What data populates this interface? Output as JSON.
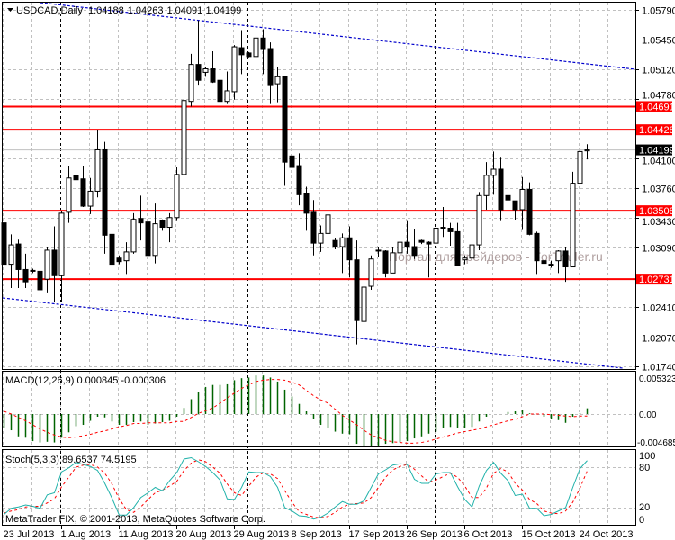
{
  "header": {
    "symbol": "USDCAD,Daily",
    "open": "1.04188",
    "high": "1.04263",
    "low": "1.04091",
    "close": "1.04199"
  },
  "price_axis": {
    "ticks": [
      "1.05790",
      "1.05450",
      "1.05120",
      "1.04780",
      "1.04100",
      "1.03760",
      "1.03430",
      "1.03090",
      "1.02410",
      "1.02070",
      "1.01740"
    ]
  },
  "levels": [
    {
      "label": "1.04691",
      "color": "#ff0000"
    },
    {
      "label": "1.04428",
      "color": "#ff0000"
    },
    {
      "label": "1.03508",
      "color": "#ff0000"
    },
    {
      "label": "1.02731",
      "color": "#ff0000"
    }
  ],
  "current_price": {
    "label": "1.04199",
    "color": "#000000"
  },
  "watermark": "Портал для трейдеров - ForTrader.ru",
  "copyright": "MetaTrader FIX, © 2001-2013, MetaQuotes Software Corp.",
  "macd": {
    "title": "MACD(12,26,9) 0.000845 -0.000306",
    "axis": [
      "0.005323",
      "0.00",
      "-0.004685"
    ]
  },
  "stoch": {
    "title": "Stoch(5,3,3) 89.6537 74.5195",
    "axis": [
      "100",
      "80",
      "20",
      "0"
    ]
  },
  "dates": [
    {
      "label": "23 Jul 2013",
      "bar": 1
    },
    {
      "label": "1 Aug 2013",
      "bar": 9
    },
    {
      "label": "11 Aug 2013",
      "bar": 17
    },
    {
      "label": "20 Aug 2013",
      "bar": 25
    },
    {
      "label": "29 Aug 2013",
      "bar": 33
    },
    {
      "label": "8 Sep 2013",
      "bar": 41
    },
    {
      "label": "17 Sep 2013",
      "bar": 49
    },
    {
      "label": "26 Sep 2013",
      "bar": 57
    },
    {
      "label": "6 Oct 2013",
      "bar": 65
    },
    {
      "label": "15 Oct 2013",
      "bar": 73
    },
    {
      "label": "24 Oct 2013",
      "bar": 81
    }
  ],
  "colors": {
    "bull": "#ffffff",
    "bear": "#000000",
    "trendline": "#0000cc",
    "macd_hist": "#006400",
    "signal": "#ff0000",
    "stoch_k": "#20b2aa",
    "stoch_d": "#ff0000",
    "grid": "#c0c0c0"
  },
  "chart_data": {
    "type": "candlestick",
    "symbol": "USDCAD",
    "timeframe": "Daily",
    "ylim": [
      1.0174,
      1.0579
    ],
    "ohlc": [
      [
        1.0337,
        1.0348,
        1.0276,
        1.029
      ],
      [
        1.029,
        1.0324,
        1.0263,
        1.0312
      ],
      [
        1.0313,
        1.0318,
        1.0263,
        1.0284
      ],
      [
        1.0284,
        1.0302,
        1.0263,
        1.027
      ],
      [
        1.0283,
        1.0285,
        1.028,
        1.0283
      ],
      [
        1.0282,
        1.0283,
        1.0247,
        1.0261
      ],
      [
        1.0273,
        1.0309,
        1.0258,
        1.0306
      ],
      [
        1.0306,
        1.0333,
        1.0247,
        1.0277
      ],
      [
        1.0277,
        1.035,
        1.0247,
        1.0348
      ],
      [
        1.0349,
        1.0401,
        1.0337,
        1.0388
      ],
      [
        1.0391,
        1.0396,
        1.0385,
        1.0386
      ],
      [
        1.0387,
        1.0402,
        1.0355,
        1.0356
      ],
      [
        1.0356,
        1.0388,
        1.0347,
        1.0373
      ],
      [
        1.0373,
        1.0442,
        1.0366,
        1.042
      ],
      [
        1.042,
        1.0429,
        1.0302,
        1.0323
      ],
      [
        1.0324,
        1.0351,
        1.0273,
        1.029
      ],
      [
        1.0297,
        1.03,
        1.029,
        1.0293
      ],
      [
        1.0294,
        1.0315,
        1.0279,
        1.0304
      ],
      [
        1.0304,
        1.0348,
        1.0302,
        1.0341
      ],
      [
        1.0342,
        1.0368,
        1.0317,
        1.0337
      ],
      [
        1.0338,
        1.0362,
        1.0291,
        1.03
      ],
      [
        1.03,
        1.0359,
        1.0291,
        1.0336
      ],
      [
        1.034,
        1.0341,
        1.0328,
        1.0332
      ],
      [
        1.0332,
        1.0348,
        1.0315,
        1.0343
      ],
      [
        1.0343,
        1.04,
        1.0339,
        1.0392
      ],
      [
        1.0392,
        1.0482,
        1.0391,
        1.0476
      ],
      [
        1.0475,
        1.0529,
        1.0469,
        1.0517
      ],
      [
        1.0517,
        1.0567,
        1.0493,
        1.0499
      ],
      [
        1.0508,
        1.0514,
        1.0503,
        1.0512
      ],
      [
        1.0512,
        1.0532,
        1.0496,
        1.0497
      ],
      [
        1.0499,
        1.0538,
        1.0469,
        1.0475
      ],
      [
        1.0475,
        1.0509,
        1.0472,
        1.0487
      ],
      [
        1.0486,
        1.0539,
        1.0477,
        1.0537
      ],
      [
        1.0536,
        1.0556,
        1.0506,
        1.0528
      ],
      [
        1.053,
        1.0531,
        1.0525,
        1.0526
      ],
      [
        1.0526,
        1.0555,
        1.0513,
        1.0547
      ],
      [
        1.0547,
        1.0557,
        1.0506,
        1.0534
      ],
      [
        1.0535,
        1.0542,
        1.0472,
        1.0493
      ],
      [
        1.0495,
        1.0514,
        1.0474,
        1.0503
      ],
      [
        1.0503,
        1.0503,
        1.0379,
        1.0406
      ],
      [
        1.0413,
        1.0417,
        1.0399,
        1.04
      ],
      [
        1.0402,
        1.0416,
        1.0357,
        1.0369
      ],
      [
        1.037,
        1.0378,
        1.0328,
        1.0348
      ],
      [
        1.0349,
        1.0363,
        1.03,
        1.0314
      ],
      [
        1.0314,
        1.0334,
        1.0304,
        1.0325
      ],
      [
        1.0325,
        1.0351,
        1.0321,
        1.0346
      ],
      [
        1.0317,
        1.032,
        1.0307,
        1.031
      ],
      [
        1.031,
        1.0325,
        1.028,
        1.032
      ],
      [
        1.032,
        1.0333,
        1.0275,
        1.0295
      ],
      [
        1.0295,
        1.0317,
        1.0199,
        1.0226
      ],
      [
        1.0225,
        1.0267,
        1.0181,
        1.0264
      ],
      [
        1.0265,
        1.03,
        1.0261,
        1.0296
      ],
      [
        1.0306,
        1.0309,
        1.0298,
        1.0306
      ],
      [
        1.0305,
        1.0306,
        1.0275,
        1.028
      ],
      [
        1.028,
        1.0309,
        1.028,
        1.0303
      ],
      [
        1.0303,
        1.0317,
        1.0283,
        1.0315
      ],
      [
        1.0315,
        1.0339,
        1.0302,
        1.031
      ],
      [
        1.031,
        1.033,
        1.0296,
        1.03
      ],
      [
        1.0317,
        1.0318,
        1.0313,
        1.0315
      ],
      [
        1.0315,
        1.0316,
        1.0275,
        1.0313
      ],
      [
        1.0314,
        1.0336,
        1.0285,
        1.0331
      ],
      [
        1.0332,
        1.0355,
        1.0321,
        1.0332
      ],
      [
        1.0331,
        1.0337,
        1.0311,
        1.0327
      ],
      [
        1.0327,
        1.0337,
        1.0288,
        1.0289
      ],
      [
        1.0295,
        1.03,
        1.029,
        1.0297
      ],
      [
        1.0297,
        1.0332,
        1.0295,
        1.0312
      ],
      [
        1.0312,
        1.0372,
        1.0306,
        1.0368
      ],
      [
        1.0368,
        1.0406,
        1.0352,
        1.0391
      ],
      [
        1.0391,
        1.0418,
        1.0369,
        1.0398
      ],
      [
        1.0398,
        1.0411,
        1.0339,
        1.0352
      ],
      [
        1.0368,
        1.0369,
        1.0362,
        1.0363
      ],
      [
        1.0362,
        1.0362,
        1.034,
        1.0352
      ],
      [
        1.0352,
        1.0389,
        1.0329,
        1.0375
      ],
      [
        1.0375,
        1.0383,
        1.0323,
        1.0324
      ],
      [
        1.0325,
        1.0327,
        1.0279,
        1.0294
      ],
      [
        1.0294,
        1.0302,
        1.0276,
        1.0291
      ],
      [
        1.029,
        1.0294,
        1.0286,
        1.0289
      ],
      [
        1.0294,
        1.0306,
        1.028,
        1.0305
      ],
      [
        1.0305,
        1.0309,
        1.027,
        1.0287
      ],
      [
        1.0287,
        1.0395,
        1.0287,
        1.0382
      ],
      [
        1.0382,
        1.0437,
        1.0364,
        1.0418
      ],
      [
        1.04188,
        1.04263,
        1.04091,
        1.04199
      ]
    ],
    "levels": [
      1.04691,
      1.04428,
      1.03508,
      1.02731
    ],
    "current": 1.04199,
    "macd": {
      "ylim": [
        -0.004685,
        0.005323
      ],
      "hist": [
        -0.002,
        -0.0024,
        -0.0033,
        -0.0035,
        -0.004,
        -0.0042,
        -0.0041,
        -0.0042,
        -0.0035,
        -0.0027,
        -0.0018,
        -0.0016,
        -0.001,
        -0.0004,
        -0.0005,
        -0.0011,
        -0.0016,
        -0.0016,
        -0.0012,
        -0.0011,
        -0.0016,
        -0.0014,
        -0.0012,
        -0.001,
        -0.0004,
        0.0009,
        0.0022,
        0.0032,
        0.004,
        0.0043,
        0.0043,
        0.0044,
        0.005,
        0.0053,
        0.0054,
        0.0057,
        0.0057,
        0.0054,
        0.0048,
        0.0036,
        0.0026,
        0.0015,
        0.0004,
        -0.0007,
        -0.0016,
        -0.002,
        -0.0026,
        -0.0029,
        -0.003,
        -0.0044,
        -0.0047,
        -0.0048,
        -0.0047,
        -0.0044,
        -0.0043,
        -0.0042,
        -0.004,
        -0.0036,
        -0.0033,
        -0.0029,
        -0.0026,
        -0.0021,
        -0.0019,
        -0.002,
        -0.0021,
        -0.0019,
        -0.0011,
        -0.0004,
        0.0,
        0.0,
        0.0003,
        0.0004,
        0.0006,
        0.0001,
        0.0,
        -0.0004,
        -0.0008,
        -0.0009,
        -0.0013,
        -0.0004,
        0.0001,
        0.000845
      ],
      "signal": [
        0.0004,
        0.0,
        -0.0005,
        -0.001,
        -0.0016,
        -0.0022,
        -0.0027,
        -0.0031,
        -0.0034,
        -0.0035,
        -0.0034,
        -0.0032,
        -0.003,
        -0.0027,
        -0.0025,
        -0.0022,
        -0.0019,
        -0.0017,
        -0.0014,
        -0.0014,
        -0.0013,
        -0.0013,
        -0.0013,
        -0.0013,
        -0.0011,
        -0.0011,
        -0.0005,
        0.0001,
        0.0005,
        0.0009,
        0.0016,
        0.0024,
        0.0031,
        0.0038,
        0.0043,
        0.0048,
        0.005,
        0.0051,
        0.0051,
        0.005,
        0.0047,
        0.0043,
        0.0035,
        0.0027,
        0.0021,
        0.0016,
        0.0007,
        -0.0002,
        -0.0009,
        -0.0016,
        -0.0024,
        -0.0031,
        -0.0035,
        -0.0039,
        -0.0041,
        -0.0042,
        -0.0043,
        -0.0043,
        -0.0042,
        -0.004,
        -0.0037,
        -0.0034,
        -0.0031,
        -0.0028,
        -0.0026,
        -0.0024,
        -0.0022,
        -0.0019,
        -0.0016,
        -0.0013,
        -0.001,
        -0.0008,
        -0.0004,
        0.0,
        0.0,
        0.0,
        -0.0001,
        -0.0002,
        -0.0003,
        -0.0004,
        -0.0003,
        -0.000306
      ]
    },
    "stoch": {
      "ylim": [
        0,
        100
      ],
      "k": [
        10,
        19,
        21,
        24,
        22,
        19,
        39,
        42,
        73,
        79,
        87,
        84,
        81,
        75,
        56,
        34,
        9,
        9,
        20,
        35,
        42,
        50,
        45,
        60,
        72,
        92,
        94,
        88,
        81,
        72,
        61,
        33,
        32,
        50,
        73,
        72,
        72,
        66,
        50,
        20,
        15,
        8,
        7,
        3,
        6,
        12,
        21,
        29,
        25,
        25,
        30,
        50,
        70,
        76,
        83,
        85,
        84,
        62,
        56,
        56,
        70,
        72,
        72,
        51,
        32,
        21,
        52,
        75,
        87,
        71,
        60,
        38,
        40,
        19,
        19,
        8,
        10,
        15,
        20,
        50,
        78,
        89.6537
      ],
      "d": [
        12,
        15,
        17,
        21,
        22,
        22,
        27,
        33,
        51,
        65,
        80,
        83,
        84,
        80,
        71,
        55,
        33,
        17,
        13,
        21,
        32,
        42,
        46,
        52,
        59,
        75,
        86,
        91,
        88,
        80,
        71,
        55,
        42,
        38,
        52,
        65,
        72,
        70,
        63,
        45,
        28,
        14,
        10,
        6,
        5,
        7,
        13,
        21,
        25,
        26,
        27,
        35,
        50,
        65,
        76,
        81,
        84,
        77,
        67,
        58,
        61,
        66,
        71,
        65,
        52,
        35,
        35,
        49,
        71,
        78,
        73,
        56,
        46,
        32,
        26,
        15,
        12,
        11,
        15,
        28,
        49,
        74.5195
      ]
    }
  }
}
